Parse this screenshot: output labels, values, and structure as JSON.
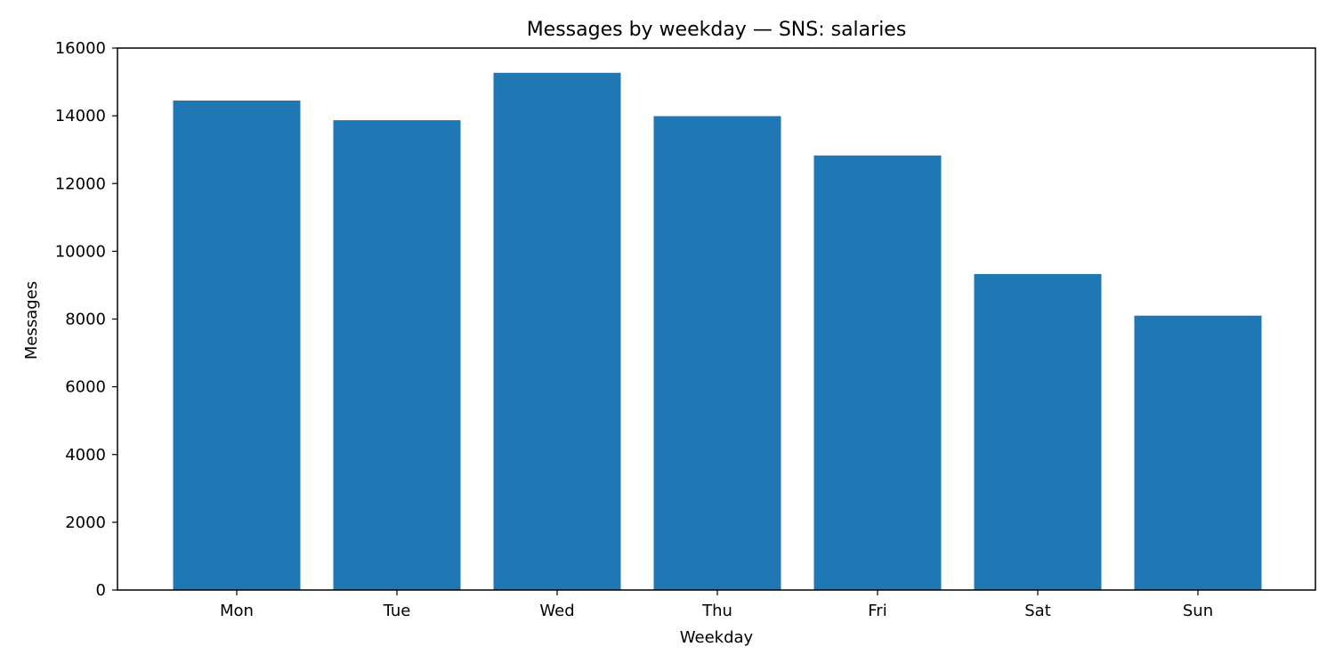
{
  "chart_data": {
    "type": "bar",
    "title": "Messages by weekday — SNS: salaries",
    "xlabel": "Weekday",
    "ylabel": "Messages",
    "categories": [
      "Mon",
      "Tue",
      "Wed",
      "Thu",
      "Fri",
      "Sat",
      "Sun"
    ],
    "values": [
      14450,
      13870,
      15270,
      13990,
      12830,
      9330,
      8100
    ],
    "ylim": [
      0,
      16000
    ],
    "yticks": [
      0,
      2000,
      4000,
      6000,
      8000,
      10000,
      12000,
      14000,
      16000
    ],
    "grid": false,
    "legend": "none",
    "bar_color": "#1f77b4"
  }
}
